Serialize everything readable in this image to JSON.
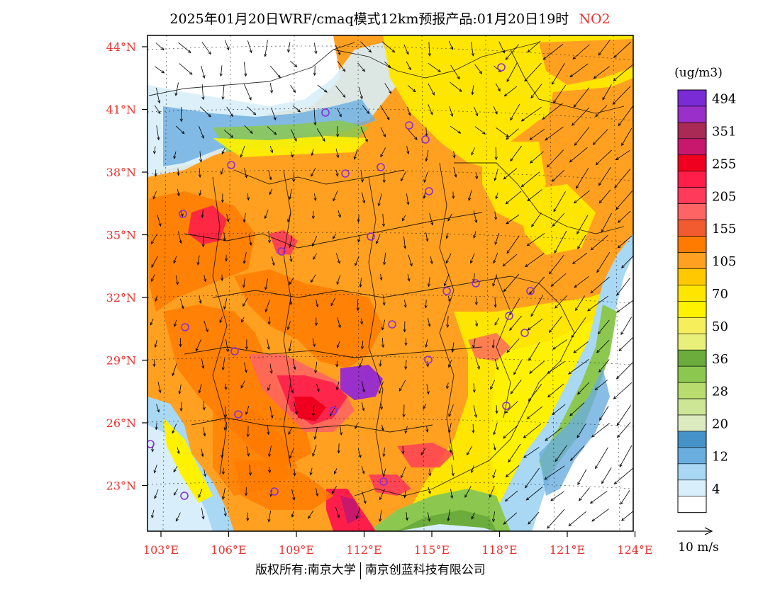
{
  "title": {
    "text": "2025年01月20日WRF/cmaq模式12km预报产品:01月20日19时",
    "pollutant": "NO2"
  },
  "axes": {
    "lat_labels": [
      "44°N",
      "41°N",
      "38°N",
      "35°N",
      "32°N",
      "29°N",
      "26°N",
      "23°N"
    ],
    "lon_labels": [
      "103°E",
      "106°E",
      "109°E",
      "112°E",
      "115°E",
      "118°E",
      "121°E",
      "124°E"
    ],
    "label_color": "#e8322f"
  },
  "legend": {
    "unit": "(ug/m3)",
    "levels": [
      {
        "label": "494",
        "color": "#7b2bd6"
      },
      {
        "label": "",
        "color": "#9a2fc9"
      },
      {
        "label": "351",
        "color": "#a82a55"
      },
      {
        "label": "",
        "color": "#c8186e"
      },
      {
        "label": "255",
        "color": "#f0001e"
      },
      {
        "label": "",
        "color": "#ff1e4a"
      },
      {
        "label": "205",
        "color": "#ff3a5a"
      },
      {
        "label": "",
        "color": "#ff6464"
      },
      {
        "label": "155",
        "color": "#f25a30"
      },
      {
        "label": "",
        "color": "#ff7b00"
      },
      {
        "label": "105",
        "color": "#ffa021"
      },
      {
        "label": "",
        "color": "#ffc800"
      },
      {
        "label": "70",
        "color": "#ffe600"
      },
      {
        "label": "",
        "color": "#fff200"
      },
      {
        "label": "50",
        "color": "#f6ee5a"
      },
      {
        "label": "",
        "color": "#e8f07a"
      },
      {
        "label": "36",
        "color": "#6bac3c"
      },
      {
        "label": "",
        "color": "#8cc850"
      },
      {
        "label": "28",
        "color": "#b8dd6e"
      },
      {
        "label": "",
        "color": "#cce696"
      },
      {
        "label": "20",
        "color": "#dcecc0"
      },
      {
        "label": "",
        "color": "#4492c8"
      },
      {
        "label": "12",
        "color": "#6aaee0"
      },
      {
        "label": "",
        "color": "#a8d8f4"
      },
      {
        "label": "4",
        "color": "#d8eefa"
      },
      {
        "label": "",
        "color": "#ffffff"
      }
    ]
  },
  "wind_scale": {
    "label": "10 m/s"
  },
  "credit": {
    "left": "版权所有:南京大学",
    "right": "南京创蓝科技有限公司"
  },
  "cities": 28
}
